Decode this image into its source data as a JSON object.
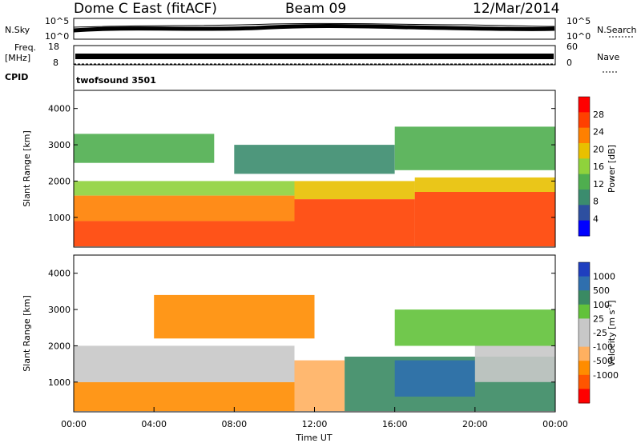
{
  "header": {
    "station": "Dome C East (fitACF)",
    "beam": "Beam 09",
    "date": "12/Mar/2014"
  },
  "summary_panels": {
    "nsky_label": "N.Sky",
    "nsky_ticks": [
      "10^5",
      "10^0"
    ],
    "nsearch_label": "N.Search",
    "nsearch_ticks": [
      "10^5",
      "10^0"
    ],
    "freq_label_1": "Freq.",
    "freq_label_2": "[MHz]",
    "freq_ticks": [
      "18",
      "8"
    ],
    "nave_label": "Nave",
    "nave_ticks": [
      "60",
      "0"
    ],
    "cpid_label": "CPID",
    "cpid_value": "twofsound 3501"
  },
  "colors": {
    "power_scale": [
      "#0000ff",
      "#2d4fa0",
      "#3b8c6e",
      "#4fae4f",
      "#8fd23c",
      "#e8c000",
      "#ff8000",
      "#ff4000",
      "#ff0000"
    ],
    "velocity_scale": [
      "#ff0000",
      "#ff5500",
      "#ff8c00",
      "#ffb060",
      "#c8c8c8",
      "#c8c8c8",
      "#62c23a",
      "#3a8a63",
      "#2f6fae",
      "#1f3fbf"
    ]
  },
  "chart_data": [
    {
      "type": "heatmap",
      "panel": "power",
      "ylabel": "Slant Range [km]",
      "yticks": [
        1000,
        2000,
        3000,
        4000
      ],
      "ylim": [
        180,
        4500
      ],
      "xlim": [
        0,
        24
      ],
      "colorbar_label": "Power [dB]",
      "colorbar_ticks": [
        "28",
        "24",
        "20",
        "16",
        "12",
        "8",
        "4"
      ],
      "colorbar_range": [
        0,
        32
      ],
      "regions": [
        {
          "t0": 0.0,
          "t1": 11.0,
          "r0": 200,
          "r1": 900,
          "value": 28
        },
        {
          "t0": 0.0,
          "t1": 11.0,
          "r0": 900,
          "r1": 1600,
          "value": 22
        },
        {
          "t0": 0.0,
          "t1": 11.0,
          "r0": 1600,
          "r1": 2000,
          "value": 16
        },
        {
          "t0": 11.0,
          "t1": 17.0,
          "r0": 200,
          "r1": 1500,
          "value": 26
        },
        {
          "t0": 11.0,
          "t1": 17.0,
          "r0": 1500,
          "r1": 2000,
          "value": 18
        },
        {
          "t0": 17.0,
          "t1": 24.0,
          "r0": 200,
          "r1": 1700,
          "value": 28
        },
        {
          "t0": 17.0,
          "t1": 24.0,
          "r0": 1700,
          "r1": 2100,
          "value": 20
        },
        {
          "t0": 0.0,
          "t1": 7.0,
          "r0": 2500,
          "r1": 3300,
          "value": 14
        },
        {
          "t0": 8.0,
          "t1": 16.0,
          "r0": 2200,
          "r1": 3000,
          "value": 10
        },
        {
          "t0": 16.0,
          "t1": 24.0,
          "r0": 2300,
          "r1": 3500,
          "value": 12
        }
      ]
    },
    {
      "type": "heatmap",
      "panel": "velocity",
      "ylabel": "Slant Range [km]",
      "yticks": [
        1000,
        2000,
        3000,
        4000
      ],
      "ylim": [
        180,
        4500
      ],
      "xlim": [
        0,
        24
      ],
      "xticks": [
        "00:00",
        "04:00",
        "08:00",
        "12:00",
        "16:00",
        "20:00",
        "00:00"
      ],
      "xlabel": "Time UT",
      "colorbar_label": "Velocity [m s^-1]",
      "colorbar_ticks": [
        "1000",
        "500",
        "100",
        "25",
        "-25",
        "-100",
        "-500",
        "-1000"
      ],
      "regions": [
        {
          "t0": 0.0,
          "t1": 11.0,
          "r0": 200,
          "r1": 1000,
          "value": -300
        },
        {
          "t0": 0.0,
          "t1": 11.0,
          "r0": 1000,
          "r1": 2000,
          "value": 0
        },
        {
          "t0": 11.0,
          "t1": 13.5,
          "r0": 200,
          "r1": 1600,
          "value": -80
        },
        {
          "t0": 13.5,
          "t1": 24.0,
          "r0": 200,
          "r1": 1700,
          "value": 120
        },
        {
          "t0": 16.0,
          "t1": 20.0,
          "r0": 600,
          "r1": 1600,
          "value": 600
        },
        {
          "t0": 20.0,
          "t1": 24.0,
          "r0": 1000,
          "r1": 2000,
          "value": 0
        },
        {
          "t0": 4.0,
          "t1": 12.0,
          "r0": 2200,
          "r1": 3400,
          "value": -200
        },
        {
          "t0": 16.0,
          "t1": 24.0,
          "r0": 2000,
          "r1": 3000,
          "value": 60
        }
      ]
    }
  ]
}
